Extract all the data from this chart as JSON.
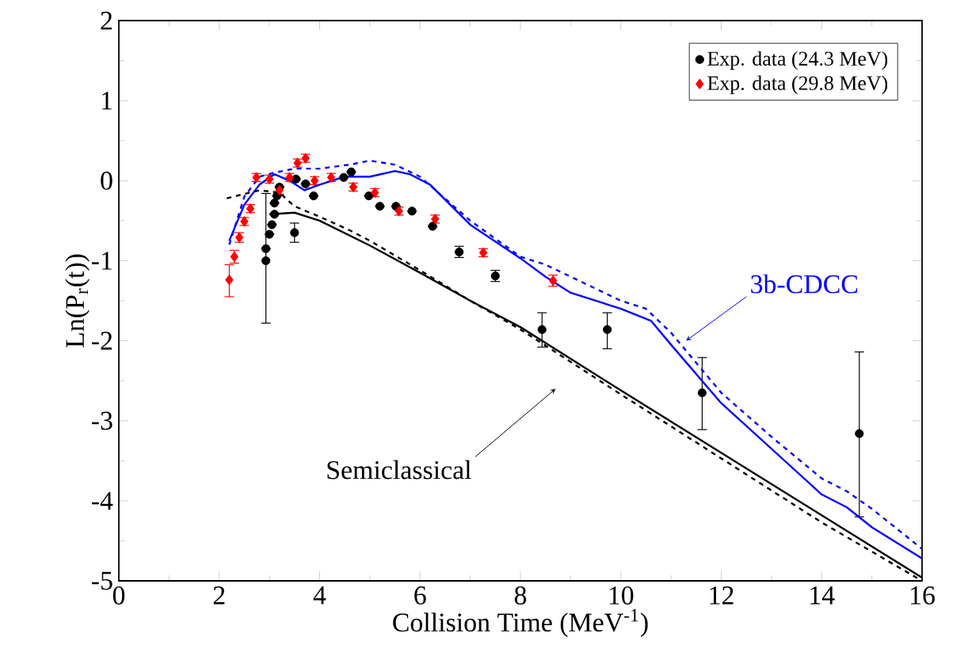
{
  "chart_data": {
    "type": "scatter",
    "xlabel": "Collision Time (MeV$^{-1}$)",
    "ylabel": "Ln(P$_{r}$(t))",
    "xlim": [
      0,
      16
    ],
    "ylim": [
      -5,
      2
    ],
    "xticks": [
      0,
      2,
      4,
      6,
      8,
      10,
      12,
      14,
      16
    ],
    "yticks": [
      -5,
      -4,
      -3,
      -2,
      -1,
      0,
      1,
      2
    ],
    "legend": "top right",
    "grid": false,
    "series": [
      {
        "name": "Exp. data (24.3 MeV)",
        "marker": "circle",
        "color": "#000000",
        "x": [
          2.93,
          2.93,
          3.0,
          3.05,
          3.1,
          3.1,
          3.15,
          3.2,
          3.53,
          3.5,
          3.72,
          3.88,
          4.2,
          4.48,
          4.63,
          4.98,
          5.2,
          5.52,
          5.84,
          6.25,
          6.78,
          7.5,
          8.43,
          9.73,
          11.62,
          14.75
        ],
        "values": [
          -1.0,
          -0.85,
          -0.67,
          -0.55,
          -0.42,
          -0.28,
          -0.19,
          -0.08,
          0.02,
          -0.65,
          -0.04,
          -0.19,
          null,
          0.04,
          0.11,
          -0.19,
          -0.32,
          -0.32,
          -0.38,
          -0.57,
          -0.89,
          -1.19,
          -1.86,
          -1.86,
          -2.65,
          -3.16
        ],
        "errors": [
          [
            -1.78,
            -0.16
          ],
          null,
          null,
          null,
          null,
          null,
          null,
          null,
          null,
          0.12,
          null,
          null,
          null,
          null,
          null,
          null,
          null,
          null,
          null,
          null,
          0.07,
          0.07,
          [
            -2.08,
            -1.65
          ],
          [
            -2.1,
            -1.65
          ],
          [
            -3.11,
            -2.21
          ],
          [
            -4.2,
            -2.14
          ]
        ]
      },
      {
        "name": "Exp. data (29.8 MeV)",
        "marker": "diamond",
        "color": "#ff0000",
        "x": [
          2.2,
          2.3,
          2.4,
          2.5,
          2.62,
          2.74,
          3.0,
          3.2,
          3.4,
          3.56,
          3.72,
          3.9,
          4.23,
          4.67,
          5.1,
          5.58,
          6.3,
          7.26,
          8.65
        ],
        "values": [
          -1.24,
          -0.95,
          -0.71,
          -0.51,
          -0.35,
          0.04,
          0.02,
          -0.12,
          0.04,
          0.22,
          0.28,
          0.0,
          0.04,
          -0.08,
          -0.15,
          -0.38,
          -0.48,
          -0.9,
          -1.25
        ],
        "errors": [
          [
            -1.45,
            -1.05
          ],
          0.08,
          0.06,
          0.05,
          0.05,
          0.05,
          0.05,
          0.05,
          0.05,
          0.05,
          0.05,
          0.05,
          0.05,
          0.05,
          0.05,
          0.05,
          0.05,
          0.05,
          0.07
        ]
      },
      {
        "type": "line",
        "line_style": "solid",
        "color": "#0000ff",
        "x": [
          2.2,
          2.5,
          2.8,
          3.1,
          3.4,
          3.7,
          4.0,
          4.5,
          5.0,
          5.5,
          5.8,
          6.2,
          6.6,
          7.0,
          8.0,
          8.5,
          9.0,
          10.0,
          10.6,
          11.0,
          12.0,
          13.0,
          14.0,
          14.5,
          15.0,
          16.0
        ],
        "values": [
          -0.75,
          -0.3,
          -0.05,
          0.08,
          0.0,
          -0.12,
          -0.05,
          0.05,
          0.05,
          0.12,
          0.08,
          -0.05,
          -0.3,
          -0.55,
          -0.97,
          -1.2,
          -1.4,
          -1.6,
          -1.75,
          -2.05,
          -2.78,
          -3.35,
          -3.92,
          -4.08,
          -4.33,
          -4.72
        ]
      },
      {
        "type": "line",
        "line_style": "dashed",
        "color": "#0000ff",
        "x": [
          2.2,
          2.5,
          2.8,
          3.1,
          3.5,
          4.0,
          4.6,
          5.0,
          5.5,
          6.0,
          7.0,
          8.0,
          8.5,
          9.0,
          10.0,
          10.5,
          11.0,
          12.0,
          13.0,
          14.0,
          14.5,
          15.0,
          16.0
        ],
        "values": [
          -0.8,
          -0.2,
          0.05,
          0.1,
          0.15,
          0.15,
          0.2,
          0.25,
          0.2,
          0.05,
          -0.5,
          -0.95,
          -1.05,
          -1.2,
          -1.5,
          -1.6,
          -1.9,
          -2.65,
          -3.2,
          -3.72,
          -3.88,
          -4.1,
          -4.6
        ]
      },
      {
        "type": "line",
        "line_style": "solid",
        "color": "#000000",
        "x": [
          3.0,
          3.5,
          4.0,
          5.0,
          6.0,
          7.0,
          8.0,
          10.0,
          12.0,
          14.0,
          16.0
        ],
        "values": [
          -0.42,
          -0.4,
          -0.5,
          -0.81,
          -1.15,
          -1.5,
          -1.83,
          -2.62,
          -3.4,
          -4.18,
          -4.96
        ]
      },
      {
        "type": "line",
        "line_style": "dashed",
        "color": "#000000",
        "x": [
          2.15,
          2.8,
          3.2,
          3.5,
          4.0,
          4.6,
          5.0,
          6.0,
          7.0,
          8.0,
          10.0,
          12.0,
          14.0,
          16.0
        ],
        "values": [
          -0.22,
          -0.12,
          -0.15,
          -0.32,
          -0.45,
          -0.62,
          -0.75,
          -1.12,
          -1.5,
          -1.86,
          -2.67,
          -3.47,
          -4.27,
          -5.0
        ]
      }
    ],
    "annotations": [
      {
        "text": "3b-CDCC",
        "x": 11.3,
        "y": -2.0
      },
      {
        "text": "Semiclassical",
        "x": 8.7,
        "y": -2.6
      }
    ]
  }
}
